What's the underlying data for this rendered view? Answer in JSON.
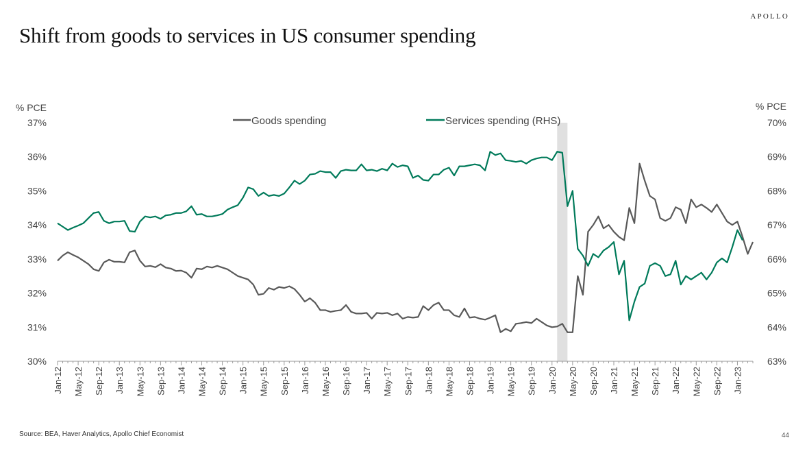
{
  "header": {
    "brand": "APOLLO",
    "title": "Shift from goods to services in US consumer spending"
  },
  "footer": {
    "source": "Source: BEA, Haver Analytics, Apollo Chief Economist",
    "page_number": "44"
  },
  "colors": {
    "goods": "#595959",
    "services": "#007A5A",
    "shade": "#E0E0E0",
    "axis": "#9a9a9a"
  },
  "chart_data": {
    "type": "line",
    "title": "Shift from goods to services in US consumer spending",
    "y_left_label": "% PCE",
    "y_right_label": "% PCE",
    "ylim_left": [
      30,
      37
    ],
    "ylim_right": [
      63,
      70
    ],
    "y_left_ticks": [
      "30%",
      "31%",
      "32%",
      "33%",
      "34%",
      "35%",
      "36%",
      "37%"
    ],
    "y_right_ticks": [
      "63%",
      "64%",
      "65%",
      "66%",
      "67%",
      "68%",
      "69%",
      "70%"
    ],
    "x_tick_labels": [
      "Jan-12",
      "May-12",
      "Sep-12",
      "Jan-13",
      "May-13",
      "Sep-13",
      "Jan-14",
      "May-14",
      "Sep-14",
      "Jan-15",
      "May-15",
      "Sep-15",
      "Jan-16",
      "May-16",
      "Sep-16",
      "Jan-17",
      "May-17",
      "Sep-17",
      "Jan-18",
      "May-18",
      "Sep-18",
      "Jan-19",
      "May-19",
      "Sep-19",
      "Jan-20",
      "May-20",
      "Sep-20",
      "Jan-21",
      "May-21",
      "Sep-21",
      "Jan-22",
      "May-22",
      "Sep-22",
      "Jan-23"
    ],
    "x_start": "2012-01",
    "shaded_period": [
      "2020-02",
      "2020-04"
    ],
    "legend": {
      "position": "top-center"
    },
    "series": [
      {
        "name": "Goods spending",
        "axis": "left",
        "color": "#595959",
        "values": [
          32.95,
          33.1,
          33.2,
          33.12,
          33.05,
          32.95,
          32.85,
          32.7,
          32.65,
          32.9,
          32.98,
          32.92,
          32.92,
          32.9,
          33.2,
          33.25,
          32.95,
          32.78,
          32.8,
          32.76,
          32.85,
          32.75,
          32.72,
          32.65,
          32.66,
          32.6,
          32.45,
          32.72,
          32.7,
          32.78,
          32.75,
          32.8,
          32.75,
          32.7,
          32.6,
          32.5,
          32.45,
          32.4,
          32.25,
          31.95,
          31.98,
          32.15,
          32.1,
          32.18,
          32.15,
          32.2,
          32.12,
          31.95,
          31.75,
          31.85,
          31.72,
          31.5,
          31.5,
          31.45,
          31.48,
          31.5,
          31.65,
          31.45,
          31.4,
          31.4,
          31.42,
          31.25,
          31.42,
          31.4,
          31.42,
          31.35,
          31.4,
          31.25,
          31.3,
          31.28,
          31.3,
          31.62,
          31.5,
          31.65,
          31.72,
          31.5,
          31.5,
          31.35,
          31.3,
          31.55,
          31.28,
          31.3,
          31.25,
          31.22,
          31.28,
          31.35,
          30.85,
          30.95,
          30.88,
          31.1,
          31.12,
          31.15,
          31.12,
          31.25,
          31.15,
          31.05,
          31.0,
          31.02,
          31.1,
          30.85,
          30.85,
          32.5,
          31.95,
          33.8,
          34.0,
          34.25,
          33.9,
          34.0,
          33.8,
          33.65,
          33.55,
          34.5,
          34.05,
          35.8,
          35.3,
          34.85,
          34.75,
          34.2,
          34.12,
          34.2,
          34.52,
          34.45,
          34.05,
          34.75,
          34.52,
          34.6,
          34.5,
          34.38,
          34.6,
          34.35,
          34.1,
          34.0,
          34.1,
          33.65,
          33.15,
          33.5
        ]
      },
      {
        "name": "Services spending (RHS)",
        "axis": "right",
        "color": "#007A5A",
        "values": [
          67.05,
          66.95,
          66.85,
          66.92,
          66.98,
          67.05,
          67.2,
          67.35,
          67.38,
          67.12,
          67.05,
          67.1,
          67.1,
          67.12,
          66.82,
          66.8,
          67.1,
          67.25,
          67.22,
          67.25,
          67.18,
          67.28,
          67.3,
          67.35,
          67.35,
          67.4,
          67.55,
          67.3,
          67.32,
          67.25,
          67.25,
          67.28,
          67.32,
          67.45,
          67.52,
          67.58,
          67.8,
          68.1,
          68.05,
          67.85,
          67.95,
          67.85,
          67.88,
          67.85,
          67.92,
          68.1,
          68.3,
          68.2,
          68.3,
          68.48,
          68.5,
          68.58,
          68.55,
          68.55,
          68.38,
          68.58,
          68.62,
          68.6,
          68.6,
          68.78,
          68.6,
          68.62,
          68.58,
          68.65,
          68.6,
          68.8,
          68.7,
          68.75,
          68.72,
          68.38,
          68.45,
          68.32,
          68.3,
          68.48,
          68.48,
          68.62,
          68.68,
          68.45,
          68.72,
          68.72,
          68.75,
          68.78,
          68.75,
          68.6,
          69.15,
          69.05,
          69.1,
          68.9,
          68.88,
          68.85,
          68.88,
          68.8,
          68.9,
          68.95,
          68.98,
          68.98,
          68.9,
          69.15,
          69.12,
          67.55,
          68.0,
          66.3,
          66.1,
          65.8,
          66.15,
          66.05,
          66.25,
          66.35,
          66.5,
          65.55,
          65.95,
          64.2,
          64.75,
          65.18,
          65.28,
          65.8,
          65.88,
          65.8,
          65.5,
          65.55,
          65.95,
          65.25,
          65.5,
          65.4,
          65.5,
          65.6,
          65.4,
          65.6,
          65.9,
          66.02,
          65.9,
          66.35,
          66.85,
          66.55
        ]
      }
    ]
  }
}
